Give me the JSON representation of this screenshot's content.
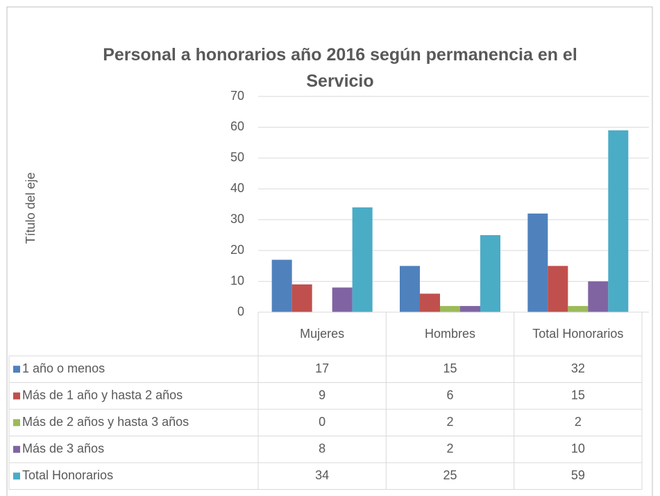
{
  "chart_data": {
    "type": "bar",
    "title": "Personal a honorarios año 2016 según permanencia en el\nServicio",
    "y_axis_label": "Título del eje",
    "categories": [
      "Mujeres",
      "Hombres",
      "Total Honorarios"
    ],
    "series": [
      {
        "name": "1 año o menos",
        "color": "#4f81bd",
        "values": [
          17,
          15,
          32
        ]
      },
      {
        "name": "Más de 1 año y hasta 2 años",
        "color": "#c0504d",
        "values": [
          9,
          6,
          15
        ]
      },
      {
        "name": "Más de 2 años y hasta 3 años",
        "color": "#9bbb59",
        "values": [
          0,
          2,
          2
        ]
      },
      {
        "name": "Más de 3 años",
        "color": "#8064a2",
        "values": [
          8,
          2,
          10
        ]
      },
      {
        "name": "Total Honorarios",
        "color": "#4bacc6",
        "values": [
          34,
          25,
          59
        ]
      }
    ],
    "ylim": [
      0,
      70
    ],
    "yticks": [
      0,
      10,
      20,
      30,
      40,
      50,
      60,
      70
    ],
    "grid": true
  }
}
